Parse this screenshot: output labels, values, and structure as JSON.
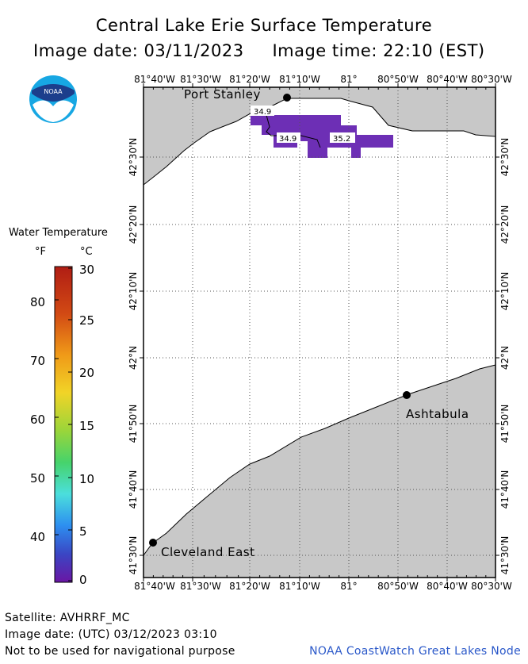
{
  "title": "Central Lake Erie Surface Temperature",
  "image_date_line": "Image date: 03/11/2023     Image time: 22:10 (EST)",
  "logo": {
    "text": "NOAA",
    "icon": "noaa-logo"
  },
  "legend": {
    "title": "Water Temperature",
    "unit_f": "°F",
    "unit_c": "°C",
    "fahrenheit_labels": [
      "80",
      "70",
      "60",
      "50",
      "40"
    ],
    "celsius_labels": [
      "30",
      "25",
      "20",
      "15",
      "10",
      "5",
      "0"
    ],
    "colors": [
      "#b01d14",
      "#e26b14",
      "#f3c51f",
      "#7bd236",
      "#4fe0d4",
      "#2b7de9",
      "#4c38b8",
      "#6a16a4"
    ]
  },
  "map": {
    "top_lon_labels": [
      "81°40'W",
      "81°30'W",
      "81°20'W",
      "81°10'W",
      "81°",
      "80°50'W",
      "80°40'W",
      "80°30'W"
    ],
    "bottom_lon_labels": [
      "81°40'W",
      "81°30'W",
      "81°20'W",
      "81°10'W",
      "81°",
      "80°50'W",
      "80°40'W",
      "80°30'W"
    ],
    "lat_labels": [
      "42°30'N",
      "42°20'N",
      "42°10'N",
      "42°N",
      "41°50'N",
      "41°40'N",
      "41°30'N"
    ],
    "places": [
      {
        "name": "Port Stanley"
      },
      {
        "name": "Ashtabula"
      },
      {
        "name": "Cleveland East"
      }
    ],
    "contour_labels": [
      "34.9",
      "34.9",
      "35.2"
    ],
    "land_color": "#c8c8c8",
    "water_color": "#ffffff",
    "cold_patch_color": "#6d2fb5"
  },
  "footer": {
    "satellite": "Satellite: AVHRRF_MC",
    "utc_date": "Image date: (UTC) 03/12/2023  03:10",
    "disclaimer": "Not to be used for navigational purpose",
    "credit": "NOAA CoastWatch Great Lakes Node"
  }
}
